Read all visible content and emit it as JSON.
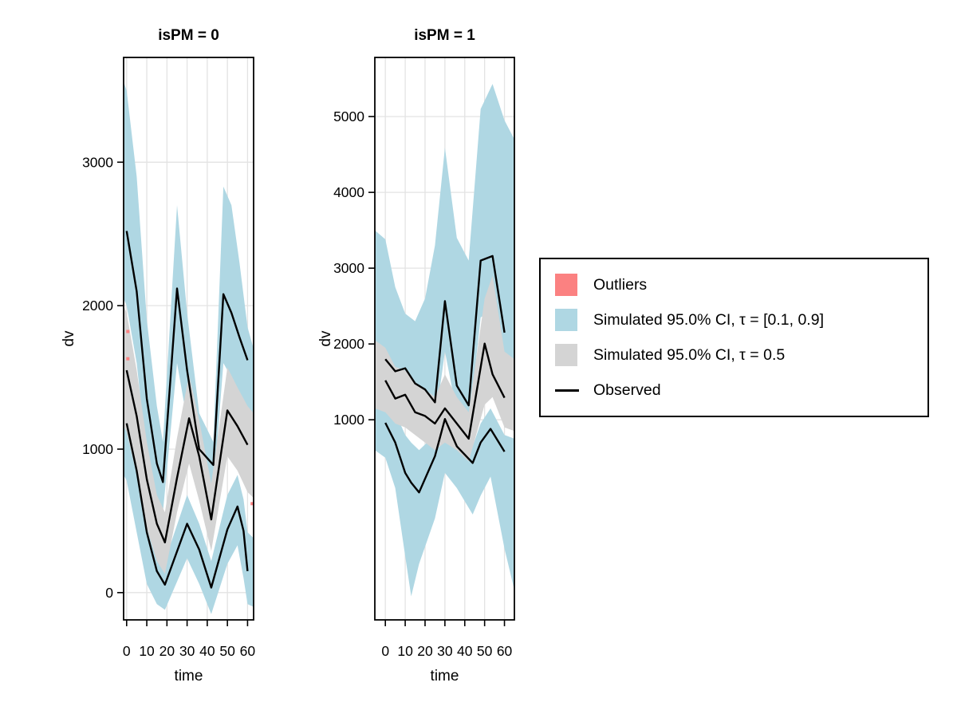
{
  "figure": {
    "background": "#ffffff",
    "grid_color": "#e3e3e3",
    "border_color": "#000000",
    "observed_color": "#000000"
  },
  "legend": {
    "items": [
      {
        "label": "Outliers",
        "swatch": "box",
        "color": "#fb8181"
      },
      {
        "label": "Simulated 95.0% CI, τ = [0.1, 0.9]",
        "swatch": "box",
        "color": "#afd7e3"
      },
      {
        "label": "Simulated 95.0% CI, τ = 0.5",
        "swatch": "box",
        "color": "#d4d4d4"
      },
      {
        "label": "Observed",
        "swatch": "line",
        "color": "#000000"
      }
    ]
  },
  "chart_data": {
    "type": "line",
    "description": "VPC-style plot: observed quantile lines with simulated confidence bands, faceted by isPM",
    "xlabel": "time",
    "ylabel": "dv",
    "facets": [
      {
        "title": "isPM = 0",
        "x_ticks": [
          0,
          10,
          20,
          30,
          40,
          50,
          60
        ],
        "y_ticks": [
          0,
          1000,
          2000,
          3000
        ],
        "xlim": [
          -1.5,
          63
        ],
        "ylim": [
          -190,
          3730
        ],
        "bands": [
          {
            "name": "ci-tau-0.9",
            "color": "#afd7e3",
            "t": [
              -1.5,
              0,
              5,
              10,
              15,
              18,
              25,
              30,
              36,
              43,
              48,
              52,
              56,
              60,
              63
            ],
            "hi": [
              3560,
              3500,
              2900,
              1900,
              1300,
              1050,
              2700,
              1950,
              1250,
              1050,
              2830,
              2700,
              2300,
              1850,
              1700
            ],
            "lo": [
              2050,
              2000,
              1600,
              950,
              620,
              560,
              1600,
              1200,
              780,
              700,
              1600,
              1500,
              1380,
              1280,
              1200
            ]
          },
          {
            "name": "ci-tau-0.1",
            "color": "#afd7e3",
            "t": [
              -1.5,
              0,
              5,
              10,
              15,
              19,
              30,
              36,
              42,
              50,
              55,
              58,
              60,
              63
            ],
            "hi": [
              1560,
              1500,
              1100,
              620,
              300,
              220,
              680,
              480,
              220,
              680,
              820,
              650,
              420,
              380
            ],
            "lo": [
              820,
              780,
              420,
              60,
              -80,
              -120,
              240,
              60,
              -150,
              200,
              330,
              100,
              -80,
              -100
            ]
          },
          {
            "name": "ci-tau-0.5",
            "color": "#d4d4d4",
            "t": [
              -1.5,
              0,
              5,
              10,
              15,
              19,
              25,
              31,
              36,
              42,
              50,
              55,
              60,
              63
            ],
            "hi": [
              2000,
              1950,
              1550,
              1050,
              680,
              560,
              1080,
              1520,
              1200,
              760,
              1570,
              1430,
              1300,
              1250
            ],
            "lo": [
              1160,
              1120,
              820,
              450,
              220,
              130,
              560,
              900,
              640,
              290,
              950,
              850,
              700,
              660
            ]
          }
        ],
        "lines": [
          {
            "name": "observed-q90",
            "t": [
              0,
              5,
              10,
              15,
              18,
              25,
              30,
              36,
              43,
              48,
              52,
              56,
              60
            ],
            "v": [
              2520,
              2100,
              1350,
              900,
              770,
              2120,
              1550,
              1000,
              890,
              2080,
              1950,
              1780,
              1620
            ]
          },
          {
            "name": "observed-q50",
            "t": [
              0,
              5,
              10,
              15,
              19,
              25,
              31,
              36,
              42,
              50,
              55,
              60
            ],
            "v": [
              1550,
              1230,
              790,
              480,
              350,
              800,
              1215,
              950,
              510,
              1270,
              1160,
              1030
            ]
          },
          {
            "name": "observed-q10",
            "t": [
              0,
              5,
              10,
              15,
              19,
              30,
              36,
              42,
              50,
              55,
              58,
              60
            ],
            "v": [
              1180,
              850,
              420,
              150,
              55,
              480,
              300,
              35,
              440,
              600,
              430,
              150
            ]
          }
        ],
        "outliers": [
          {
            "t": 0.6,
            "v": 1820
          },
          {
            "t": 0.6,
            "v": 1630
          },
          {
            "t": 62.3,
            "v": 620
          }
        ]
      },
      {
        "title": "isPM = 1",
        "x_ticks": [
          0,
          10,
          20,
          30,
          40,
          50,
          60
        ],
        "y_ticks": [
          1000,
          2000,
          3000,
          4000,
          5000
        ],
        "xlim": [
          -5.3,
          65
        ],
        "ylim": [
          -1640,
          5780
        ],
        "bands": [
          {
            "name": "ci-tau-0.9",
            "color": "#afd7e3",
            "t": [
              -5.3,
              0,
              5,
              10,
              15,
              20,
              25,
              30,
              36,
              42,
              48,
              54,
              60,
              65
            ],
            "hi": [
              3500,
              3380,
              2750,
              2400,
              2300,
              2600,
              3300,
              4590,
              3400,
              3100,
              5100,
              5430,
              4950,
              4700
            ],
            "lo": [
              1400,
              1350,
              1250,
              1200,
              1100,
              1050,
              950,
              1900,
              1100,
              900,
              2350,
              2450,
              1700,
              1600
            ]
          },
          {
            "name": "ci-tau-0.1",
            "color": "#afd7e3",
            "t": [
              -5.3,
              0,
              5,
              10,
              13,
              17,
              25,
              30,
              36,
              44,
              48,
              53,
              60,
              65
            ],
            "hi": [
              1350,
              1300,
              1100,
              800,
              700,
              600,
              800,
              1250,
              850,
              650,
              950,
              1150,
              800,
              750
            ],
            "lo": [
              600,
              500,
              100,
              -800,
              -1330,
              -900,
              -300,
              300,
              100,
              -250,
              0,
              250,
              -700,
              -1250
            ]
          },
          {
            "name": "ci-tau-0.5",
            "color": "#d4d4d4",
            "t": [
              -5.3,
              0,
              5,
              10,
              15,
              20,
              25,
              30,
              36,
              42,
              50,
              54,
              60,
              65
            ],
            "hi": [
              2050,
              1950,
              1700,
              1650,
              1500,
              1400,
              1300,
              1600,
              1300,
              1100,
              2600,
              2900,
              1900,
              1800
            ],
            "lo": [
              1150,
              1100,
              950,
              900,
              800,
              700,
              600,
              700,
              600,
              450,
              1200,
              1300,
              900,
              850
            ]
          }
        ],
        "lines": [
          {
            "name": "observed-q90",
            "t": [
              0,
              5,
              10,
              15,
              20,
              25,
              30,
              36,
              42,
              48,
              54,
              60
            ],
            "v": [
              1800,
              1640,
              1680,
              1480,
              1400,
              1230,
              2565,
              1450,
              1190,
              3100,
              3160,
              2150
            ]
          },
          {
            "name": "observed-q50",
            "t": [
              0,
              5,
              10,
              15,
              20,
              25,
              30,
              36,
              42,
              50,
              54,
              60
            ],
            "v": [
              1520,
              1280,
              1330,
              1100,
              1050,
              950,
              1150,
              950,
              750,
              2005,
              1600,
              1290
            ]
          },
          {
            "name": "observed-q10",
            "t": [
              0,
              5,
              10,
              13,
              17,
              25,
              30,
              36,
              44,
              48,
              53,
              60
            ],
            "v": [
              960,
              700,
              300,
              170,
              42,
              520,
              1010,
              650,
              430,
              700,
              880,
              580
            ]
          }
        ],
        "outliers": []
      }
    ]
  }
}
